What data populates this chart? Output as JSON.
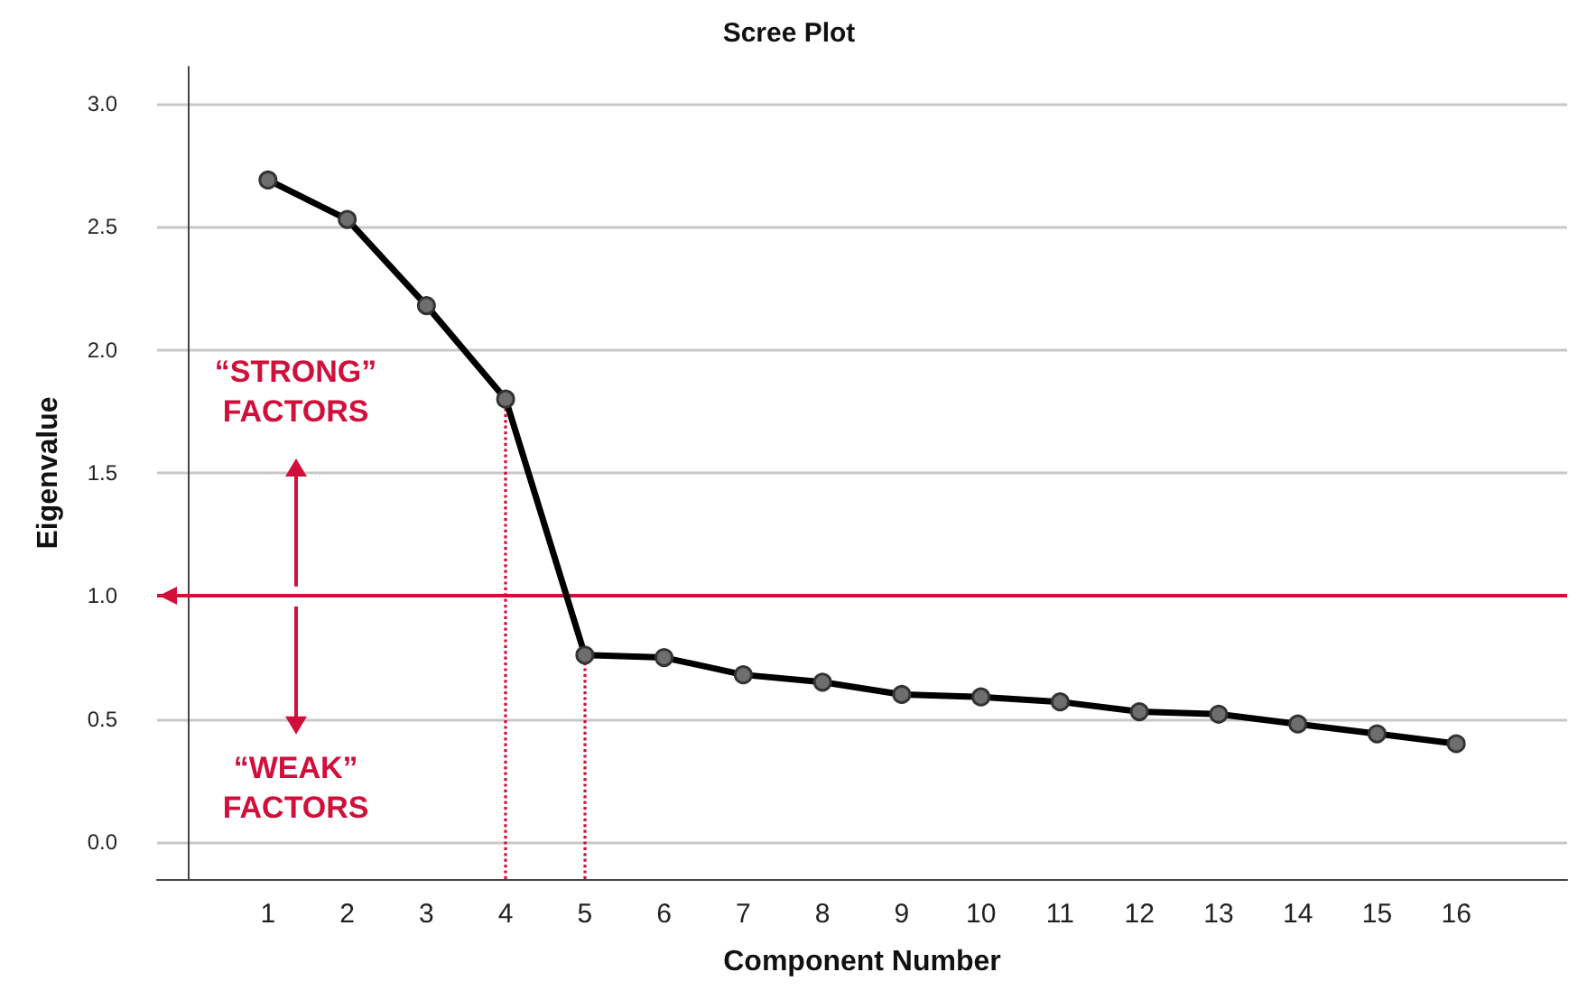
{
  "chart_data": {
    "type": "line",
    "title": "Scree Plot",
    "xlabel": "Component Number",
    "ylabel": "Eigenvalue",
    "x": [
      1,
      2,
      3,
      4,
      5,
      6,
      7,
      8,
      9,
      10,
      11,
      12,
      13,
      14,
      15,
      16
    ],
    "series": [
      {
        "color": "#000000",
        "values": [
          2.69,
          2.53,
          2.18,
          1.8,
          0.76,
          0.75,
          0.68,
          0.65,
          0.6,
          0.59,
          0.57,
          0.53,
          0.52,
          0.48,
          0.44,
          0.4
        ]
      }
    ],
    "xlim": [
      -0.4,
      17.4
    ],
    "xticks": [
      1,
      2,
      3,
      4,
      5,
      6,
      7,
      8,
      9,
      10,
      11,
      12,
      13,
      14,
      15,
      16
    ],
    "ylim": [
      -0.15,
      3.15
    ],
    "yticks": [
      {
        "value": 0,
        "label": "0.0"
      },
      {
        "value": 0.5,
        "label": "0.5"
      },
      {
        "value": 1,
        "label": "1.0"
      },
      {
        "value": 1.5,
        "label": "1.5"
      },
      {
        "value": 2,
        "label": "2.0"
      },
      {
        "value": 2.5,
        "label": "2.5"
      },
      {
        "value": 3,
        "label": "3.0"
      }
    ],
    "grid": "y",
    "marker": "circle",
    "line_style": "solid",
    "tick_labels": "xy",
    "ref_lines": [
      {
        "axis": "y",
        "value": 1,
        "label": null,
        "color": "#d0103a",
        "line_style": "solid"
      },
      {
        "axis": "x",
        "value": 4,
        "label": null,
        "color": "#d0103a",
        "line_style": "dotted"
      },
      {
        "axis": "x",
        "value": 5,
        "label": null,
        "color": "#d0103a",
        "line_style": "dotted"
      }
    ],
    "annotations": [
      "“STRONG”\nFACTORS",
      "“WEAK”\nFACTORS"
    ]
  }
}
